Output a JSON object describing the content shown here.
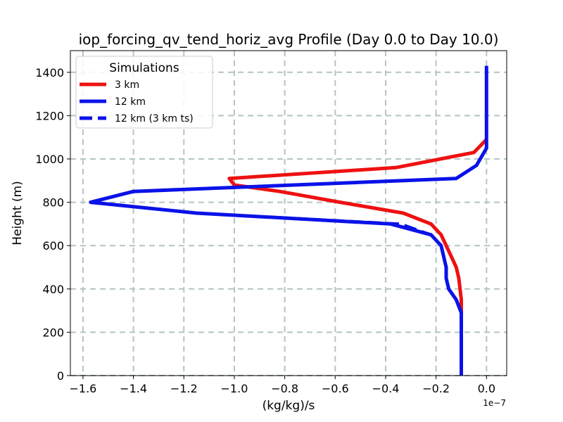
{
  "chart_data": {
    "type": "line",
    "title": "iop_forcing_qv_tend_horiz_avg Profile (Day 0.0 to Day 10.0)",
    "xlabel": "(kg/kg)/s",
    "ylabel": "Height (m)",
    "x_offset_label": "1e−7",
    "xlim": [
      -1.65,
      0.08
    ],
    "ylim": [
      0,
      1500
    ],
    "xticks": [
      -1.6,
      -1.4,
      -1.2,
      -1.0,
      -0.8,
      -0.6,
      -0.4,
      -0.2,
      0.0
    ],
    "xtick_labels": [
      "−1.6",
      "−1.4",
      "−1.2",
      "−1.0",
      "−0.8",
      "−0.6",
      "−0.4",
      "−0.2",
      "0.0"
    ],
    "yticks": [
      0,
      200,
      400,
      600,
      800,
      1000,
      1200,
      1400
    ],
    "ytick_labels": [
      "0",
      "200",
      "400",
      "600",
      "800",
      "1000",
      "1200",
      "1400"
    ],
    "grid": true,
    "legend": {
      "title": "Simulations",
      "placement": "top-left",
      "entries": [
        "3 km",
        "12 km",
        "12 km (3 km ts)"
      ]
    },
    "series": [
      {
        "name": "3 km",
        "color": "#ee1111",
        "style": "solid",
        "x": [
          -0.1,
          -0.1,
          -0.1,
          -0.1,
          -0.1,
          -0.1,
          -0.105,
          -0.11,
          -0.12,
          -0.14,
          -0.16,
          -0.18,
          -0.22,
          -0.33,
          -0.58,
          -0.82,
          -1.0,
          -1.02,
          -0.36,
          -0.05,
          0.0
        ],
        "y": [
          0,
          100,
          200,
          250,
          300,
          350,
          400,
          450,
          500,
          550,
          600,
          650,
          700,
          750,
          800,
          850,
          880,
          910,
          960,
          1030,
          1090
        ]
      },
      {
        "name": "12 km",
        "color": "#0a12e8",
        "style": "solid",
        "x": [
          -0.1,
          -0.1,
          -0.1,
          -0.1,
          -0.12,
          -0.15,
          -0.16,
          -0.16,
          -0.17,
          -0.18,
          -0.22,
          -0.38,
          -1.15,
          -1.57,
          -1.4,
          -0.12,
          -0.04,
          0.0,
          0.0,
          0.0,
          0.0,
          0.0,
          0.0,
          0.0
        ],
        "y": [
          0,
          100,
          200,
          290,
          350,
          400,
          450,
          500,
          550,
          600,
          650,
          700,
          750,
          800,
          850,
          910,
          970,
          1050,
          1100,
          1150,
          1200,
          1300,
          1400,
          1430
        ]
      },
      {
        "name": "12 km (3 km ts)",
        "color": "#0a12e8",
        "style": "dashed",
        "x": [
          -0.1,
          -0.1,
          -0.1,
          -0.1,
          -0.12,
          -0.15,
          -0.16,
          -0.16,
          -0.17,
          -0.18,
          -0.22,
          -0.34,
          -1.15,
          -1.57,
          -1.4,
          -0.12,
          -0.04,
          0.0,
          0.0,
          0.0,
          0.0,
          0.0,
          0.0,
          0.0
        ],
        "y": [
          0,
          100,
          200,
          290,
          350,
          400,
          450,
          500,
          550,
          600,
          650,
          700,
          750,
          800,
          850,
          910,
          970,
          1050,
          1100,
          1150,
          1200,
          1300,
          1400,
          1430
        ]
      }
    ]
  }
}
